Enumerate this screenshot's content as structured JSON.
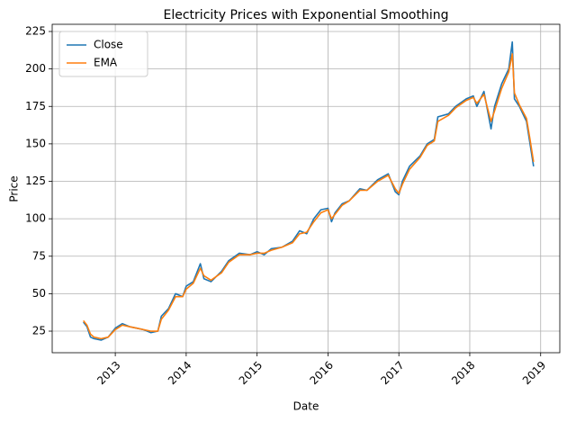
{
  "chart_data": {
    "type": "line",
    "title": "Electricity Prices with Exponential Smoothing",
    "xlabel": "Date",
    "ylabel": "Price",
    "x": [
      2012.55,
      2012.6,
      2012.65,
      2012.7,
      2012.8,
      2012.9,
      2013.0,
      2013.1,
      2013.2,
      2013.3,
      2013.4,
      2013.5,
      2013.6,
      2013.65,
      2013.75,
      2013.85,
      2013.95,
      2014.0,
      2014.1,
      2014.2,
      2014.25,
      2014.35,
      2014.5,
      2014.6,
      2014.75,
      2014.9,
      2015.0,
      2015.1,
      2015.2,
      2015.35,
      2015.5,
      2015.6,
      2015.7,
      2015.8,
      2015.9,
      2016.0,
      2016.05,
      2016.1,
      2016.2,
      2016.3,
      2016.45,
      2016.55,
      2016.7,
      2016.85,
      2016.95,
      2017.0,
      2017.05,
      2017.15,
      2017.3,
      2017.4,
      2017.5,
      2017.55,
      2017.7,
      2017.8,
      2017.95,
      2018.05,
      2018.1,
      2018.2,
      2018.3,
      2018.35,
      2018.45,
      2018.55,
      2018.6,
      2018.63,
      2018.7,
      2018.8,
      2018.85,
      2018.9
    ],
    "series": [
      {
        "name": "Close",
        "color": "#1f77b4",
        "values": [
          31,
          28,
          21,
          20,
          19,
          21,
          27,
          30,
          28,
          27,
          26,
          24,
          25,
          35,
          40,
          50,
          48,
          55,
          58,
          70,
          60,
          58,
          65,
          72,
          77,
          76,
          78,
          76,
          80,
          81,
          85,
          92,
          90,
          100,
          106,
          107,
          98,
          104,
          110,
          112,
          120,
          119,
          126,
          130,
          118,
          116,
          125,
          135,
          142,
          150,
          153,
          168,
          170,
          175,
          180,
          182,
          175,
          185,
          160,
          175,
          190,
          200,
          218,
          180,
          175,
          165,
          150,
          135
        ]
      },
      {
        "name": "EMA",
        "color": "#ff7f0e",
        "values": [
          32,
          29,
          23,
          21,
          20,
          21,
          26,
          29,
          28,
          27,
          26,
          25,
          25,
          33,
          39,
          48,
          48,
          53,
          57,
          67,
          62,
          59,
          64,
          71,
          76,
          76,
          77,
          77,
          79,
          81,
          84,
          90,
          91,
          98,
          104,
          106,
          100,
          103,
          109,
          112,
          119,
          119,
          125,
          129,
          120,
          117,
          123,
          133,
          141,
          149,
          152,
          165,
          169,
          174,
          179,
          181,
          177,
          183,
          165,
          172,
          187,
          198,
          210,
          184,
          176,
          167,
          153,
          138
        ]
      }
    ],
    "xlim": [
      2012.11,
      2019.27
    ],
    "xticks": [
      2013,
      2014,
      2015,
      2016,
      2017,
      2018,
      2019
    ],
    "ylim": [
      10.6,
      229.8
    ],
    "yticks": [
      25,
      50,
      75,
      100,
      125,
      150,
      175,
      200,
      225
    ],
    "grid": true,
    "legend": "upper left"
  }
}
